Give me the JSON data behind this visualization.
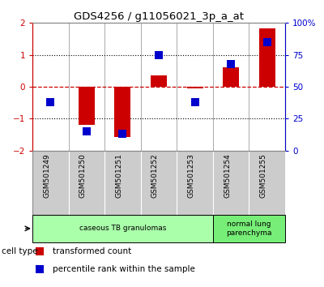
{
  "title": "GDS4256 / g11056021_3p_a_at",
  "samples": [
    "GSM501249",
    "GSM501250",
    "GSM501251",
    "GSM501252",
    "GSM501253",
    "GSM501254",
    "GSM501255"
  ],
  "transformed_count": [
    0.0,
    -1.18,
    -1.57,
    0.35,
    -0.04,
    0.62,
    1.82
  ],
  "percentile_rank": [
    38,
    15,
    13,
    75,
    38,
    68,
    85
  ],
  "ylim_left": [
    -2,
    2
  ],
  "ylim_right": [
    0,
    100
  ],
  "yticks_left": [
    -2,
    -1,
    0,
    1,
    2
  ],
  "yticks_right": [
    0,
    25,
    50,
    75,
    100
  ],
  "ytick_labels_right": [
    "0",
    "25",
    "50",
    "75",
    "100%"
  ],
  "red_color": "#cc0000",
  "blue_color": "#0000cc",
  "cell_type_groups": [
    {
      "label": "caseous TB granulomas",
      "samples": [
        0,
        1,
        2,
        3,
        4
      ],
      "color": "#aaffaa"
    },
    {
      "label": "normal lung\nparenchyma",
      "samples": [
        5,
        6
      ],
      "color": "#77ee77"
    }
  ],
  "legend_red": "transformed count",
  "legend_blue": "percentile rank within the sample",
  "cell_type_label": "cell type",
  "bar_width": 0.45,
  "dot_size": 55,
  "bar_plot_bg": "#ffffff",
  "tick_area_bg": "#cccccc"
}
